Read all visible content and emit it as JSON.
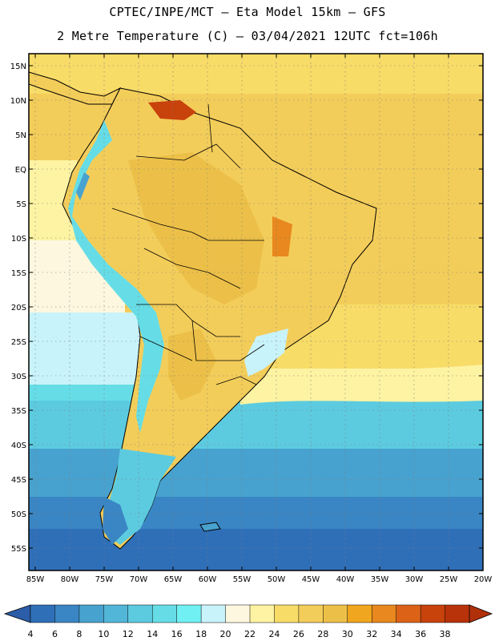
{
  "header": {
    "line1": "CPTEC/INPE/MCT –  Eta Model 15km – GFS",
    "line2": "2 Metre Temperature (C) – 03/04/2021 12UTC fct=106h"
  },
  "map": {
    "lat_labels": [
      "15N",
      "10N",
      "5N",
      "EQ",
      "5S",
      "10S",
      "15S",
      "20S",
      "25S",
      "30S",
      "35S",
      "40S",
      "45S",
      "50S",
      "55S"
    ],
    "lon_labels": [
      "85W",
      "80W",
      "75W",
      "70W",
      "65W",
      "60W",
      "55W",
      "50W",
      "45W",
      "40W",
      "35W",
      "30W",
      "25W",
      "20W"
    ]
  },
  "colorbar": {
    "labels": [
      "4",
      "6",
      "8",
      "10",
      "12",
      "14",
      "16",
      "18",
      "20",
      "22",
      "24",
      "26",
      "28",
      "30",
      "32",
      "34",
      "36",
      "38"
    ],
    "colors": [
      "#2f6fb8",
      "#3a86c4",
      "#48a2cf",
      "#52b6d8",
      "#5ccbe0",
      "#66dde6",
      "#70f0f2",
      "#c9f3fa",
      "#fdf7e0",
      "#fdf3a2",
      "#f8dc68",
      "#f3cd5a",
      "#ecc048",
      "#f0a61e",
      "#e8881e",
      "#dc6218",
      "#c8420c",
      "#b8320a"
    ],
    "low_color": "#2c5da8",
    "high_color": "#b0300a"
  }
}
